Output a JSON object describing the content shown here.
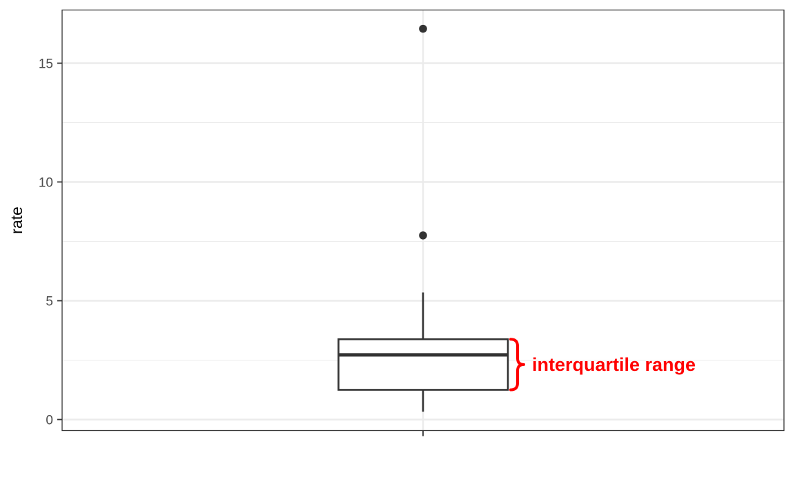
{
  "chart_data": {
    "type": "boxplot",
    "title": "",
    "xlabel": "",
    "ylabel": "rate",
    "ylim": [
      -0.5,
      17.3
    ],
    "yticks": [
      0,
      5,
      10,
      15
    ],
    "ytick_labels": [
      "0",
      "5",
      "10",
      "15"
    ],
    "grid": true,
    "box": {
      "whisker_low": 0.33,
      "q1": 1.25,
      "median": 2.72,
      "q3": 3.38,
      "whisker_high": 5.35,
      "outliers": [
        7.75,
        16.45
      ]
    },
    "annotation": {
      "text": "interquartile range",
      "color": "#ff0000",
      "spans": [
        "q1",
        "q3"
      ]
    }
  }
}
